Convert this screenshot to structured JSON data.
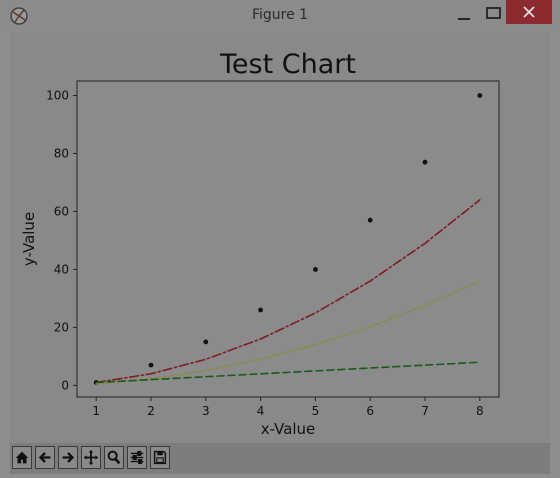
{
  "window": {
    "title": "Figure 1"
  },
  "toolbar": {
    "buttons": [
      {
        "icon": "home-icon"
      },
      {
        "icon": "back-arrow-icon"
      },
      {
        "icon": "forward-arrow-icon"
      },
      {
        "icon": "pan-icon"
      },
      {
        "icon": "zoom-icon"
      },
      {
        "icon": "subplots-config-icon"
      },
      {
        "icon": "save-icon"
      }
    ]
  },
  "chart_data": {
    "type": "line",
    "title": "Test Chart",
    "xlabel": "x-Value",
    "ylabel": "y-Value",
    "xlim": [
      0.65,
      8.35
    ],
    "ylim": [
      -4,
      105
    ],
    "xticks": [
      1,
      2,
      3,
      4,
      5,
      6,
      7,
      8
    ],
    "yticks": [
      0,
      20,
      40,
      60,
      80,
      100
    ],
    "grid": false,
    "legend": "none",
    "x": [
      1,
      2,
      3,
      4,
      5,
      6,
      7,
      8
    ],
    "series": [
      {
        "style": "dots",
        "color": "#111111",
        "values": [
          1,
          7,
          15,
          26,
          40,
          57,
          77,
          100
        ]
      },
      {
        "style": "dashdot",
        "color": "#7e1b26",
        "values": [
          1,
          4,
          9,
          16,
          25,
          36,
          49,
          64
        ]
      },
      {
        "style": "dotted",
        "color": "#8a8a34",
        "values": [
          0.56,
          2.25,
          5.06,
          9,
          14.06,
          20.25,
          27.56,
          36
        ]
      },
      {
        "style": "dashed",
        "color": "#1b5a1b",
        "values": [
          1,
          2,
          3,
          4,
          5,
          6,
          7,
          8
        ]
      }
    ]
  }
}
